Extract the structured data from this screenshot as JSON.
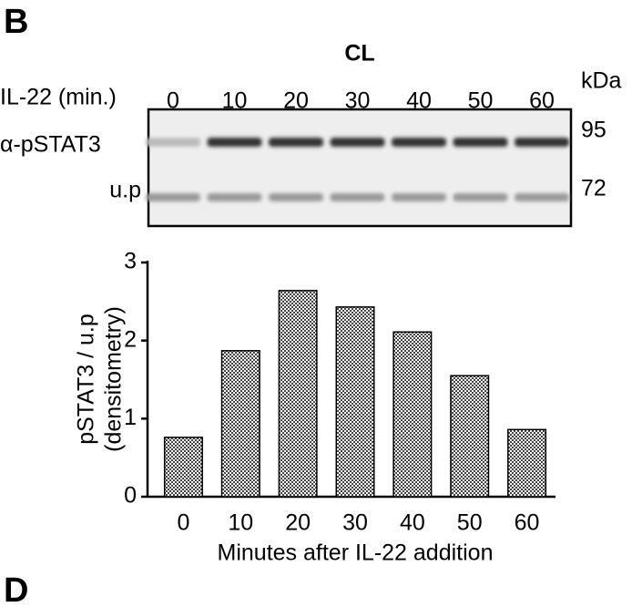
{
  "panel": "B",
  "next_panel": "D",
  "blot": {
    "title": "CL",
    "lane_header": "IL-22 (min.)",
    "lanes": [
      "0",
      "10",
      "20",
      "30",
      "40",
      "50",
      "60"
    ],
    "unit": "kDa",
    "markers": [
      "95",
      "72"
    ],
    "rows": [
      "α-pSTAT3",
      "u.p"
    ]
  },
  "chart_data": {
    "type": "bar",
    "categories": [
      "0",
      "10",
      "20",
      "30",
      "40",
      "50",
      "60"
    ],
    "values": [
      0.76,
      1.87,
      2.64,
      2.43,
      2.11,
      1.55,
      0.86
    ],
    "ylim": [
      0,
      3
    ],
    "yticks": [
      0,
      1,
      2,
      3
    ],
    "ylabel": [
      "pSTAT3 / u.p",
      "(densitometry)"
    ],
    "xlabel": "Minutes after IL-22 addition"
  }
}
